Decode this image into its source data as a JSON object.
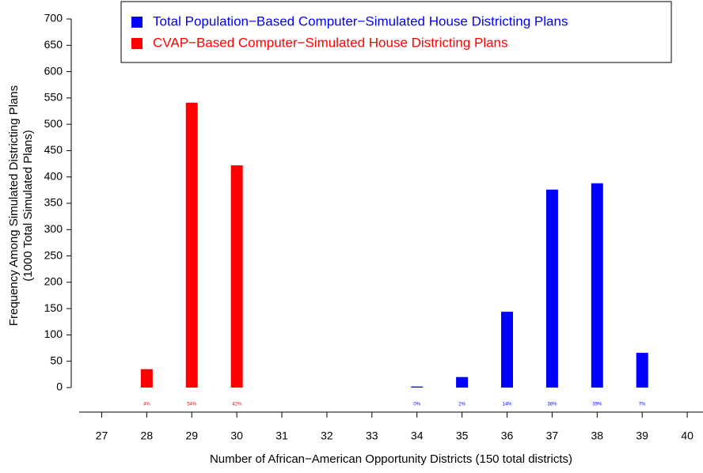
{
  "chart_data": {
    "type": "bar",
    "x_label": "Number of African−American Opportunity Districts (150 total districts)",
    "y_label": [
      "Frequency Among Simulated Districting Plans",
      "(1000 Total Simulated Plans)"
    ],
    "xlim": [
      26.5,
      40.35
    ],
    "xticks": [
      27,
      28,
      29,
      30,
      31,
      32,
      33,
      34,
      35,
      36,
      37,
      38,
      39,
      40
    ],
    "ylim": [
      0,
      700
    ],
    "yticks": [
      0,
      50,
      100,
      150,
      200,
      250,
      300,
      350,
      400,
      450,
      500,
      550,
      600,
      650,
      700
    ],
    "legend": "top",
    "series": [
      {
        "name": "Total Population−Based Computer−Simulated House Districting Plans",
        "color": "#0000ff",
        "x": [
          34,
          35,
          36,
          37,
          38,
          39
        ],
        "values": [
          2,
          20,
          144,
          376,
          388,
          66
        ],
        "percent_labels": [
          "0%",
          "2%",
          "14%",
          "38%",
          "39%",
          "7%"
        ]
      },
      {
        "name": "CVAP−Based Computer−Simulated House Districting Plans",
        "color": "#ff0000",
        "x": [
          28,
          29,
          30
        ],
        "values": [
          35,
          541,
          422
        ],
        "percent_labels": [
          "4%",
          "54%",
          "42%"
        ]
      }
    ]
  }
}
